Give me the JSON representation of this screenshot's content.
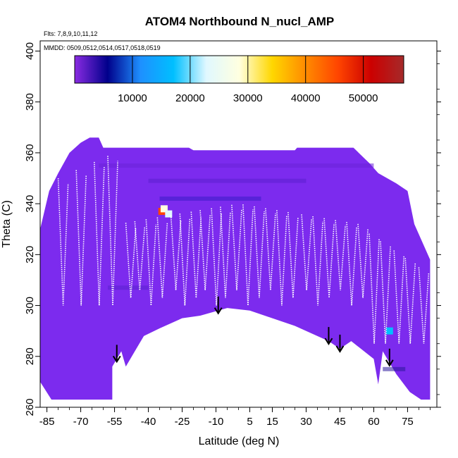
{
  "chart_data": {
    "type": "heatmap",
    "title": "ATOM4 Northbound N_nucl_AMP",
    "subtitle_flights": "Flts: 7,8,9,10,11,12",
    "subtitle_dates": "MMDD: 0509,0512,0514,0517,0518,0519",
    "xlabel": "Latitude (deg N)",
    "ylabel": "Theta (C)",
    "xlim": [
      -88,
      88
    ],
    "ylim": [
      260,
      404
    ],
    "x_ticks": [
      -85,
      -70,
      -55,
      -40,
      -25,
      -10,
      5,
      15,
      30,
      45,
      60,
      75
    ],
    "y_ticks": [
      260,
      280,
      300,
      320,
      340,
      360,
      380,
      400
    ],
    "colorbar": {
      "range": [
        0,
        57000
      ],
      "ticks": [
        10000,
        20000,
        30000,
        40000,
        50000
      ],
      "colors": [
        "#8A2BE2",
        "#00008B",
        "#1E90FF",
        "#00BFFF",
        "#E0F8FF",
        "#FFFFE0",
        "#FFD700",
        "#FF8C00",
        "#FF4500",
        "#CC0000",
        "#A52A2A"
      ]
    },
    "background_value": 2000,
    "background_color": "#7C2BEE",
    "hotspots": [
      {
        "lat": -34,
        "theta": 337,
        "value": 45000
      },
      {
        "lat": -33,
        "theta": 338,
        "value": 30000
      },
      {
        "lat": -31,
        "theta": 336,
        "value": 20000
      },
      {
        "lat": 67,
        "theta": 290,
        "value": 18000
      }
    ],
    "arrow_latitudes": [
      -54,
      -9,
      40,
      45,
      67
    ],
    "lower_boundary": [
      {
        "lat": -88,
        "theta": 270
      },
      {
        "lat": -83,
        "theta": 263
      },
      {
        "lat": -56,
        "theta": 263
      },
      {
        "lat": -56,
        "theta": 276
      },
      {
        "lat": -52,
        "theta": 282
      },
      {
        "lat": -50,
        "theta": 276
      },
      {
        "lat": -46,
        "theta": 282
      },
      {
        "lat": -42,
        "theta": 288
      },
      {
        "lat": -35,
        "theta": 291
      },
      {
        "lat": -25,
        "theta": 295
      },
      {
        "lat": -17,
        "theta": 296
      },
      {
        "lat": -5,
        "theta": 299
      },
      {
        "lat": 5,
        "theta": 298
      },
      {
        "lat": 15,
        "theta": 295
      },
      {
        "lat": 25,
        "theta": 292
      },
      {
        "lat": 40,
        "theta": 286
      },
      {
        "lat": 45,
        "theta": 283
      },
      {
        "lat": 50,
        "theta": 286
      },
      {
        "lat": 60,
        "theta": 279
      },
      {
        "lat": 62,
        "theta": 269
      },
      {
        "lat": 64,
        "theta": 282
      },
      {
        "lat": 70,
        "theta": 273
      },
      {
        "lat": 76,
        "theta": 266
      },
      {
        "lat": 81,
        "theta": 263
      }
    ],
    "upper_boundary": [
      {
        "lat": -88,
        "theta": 330
      },
      {
        "lat": -84,
        "theta": 345
      },
      {
        "lat": -80,
        "theta": 352
      },
      {
        "lat": -75,
        "theta": 360
      },
      {
        "lat": -70,
        "theta": 364
      },
      {
        "lat": -66,
        "theta": 366
      },
      {
        "lat": -62,
        "theta": 366
      },
      {
        "lat": -60,
        "theta": 362
      },
      {
        "lat": -22,
        "theta": 362
      },
      {
        "lat": -20,
        "theta": 361
      },
      {
        "lat": 25,
        "theta": 361
      },
      {
        "lat": 26,
        "theta": 362
      },
      {
        "lat": 51,
        "theta": 362
      },
      {
        "lat": 58,
        "theta": 356
      },
      {
        "lat": 62,
        "theta": 352
      },
      {
        "lat": 70,
        "theta": 348
      },
      {
        "lat": 75,
        "theta": 345
      },
      {
        "lat": 78,
        "theta": 332
      },
      {
        "lat": 82,
        "theta": 324
      },
      {
        "lat": 85,
        "theta": 318
      }
    ]
  }
}
